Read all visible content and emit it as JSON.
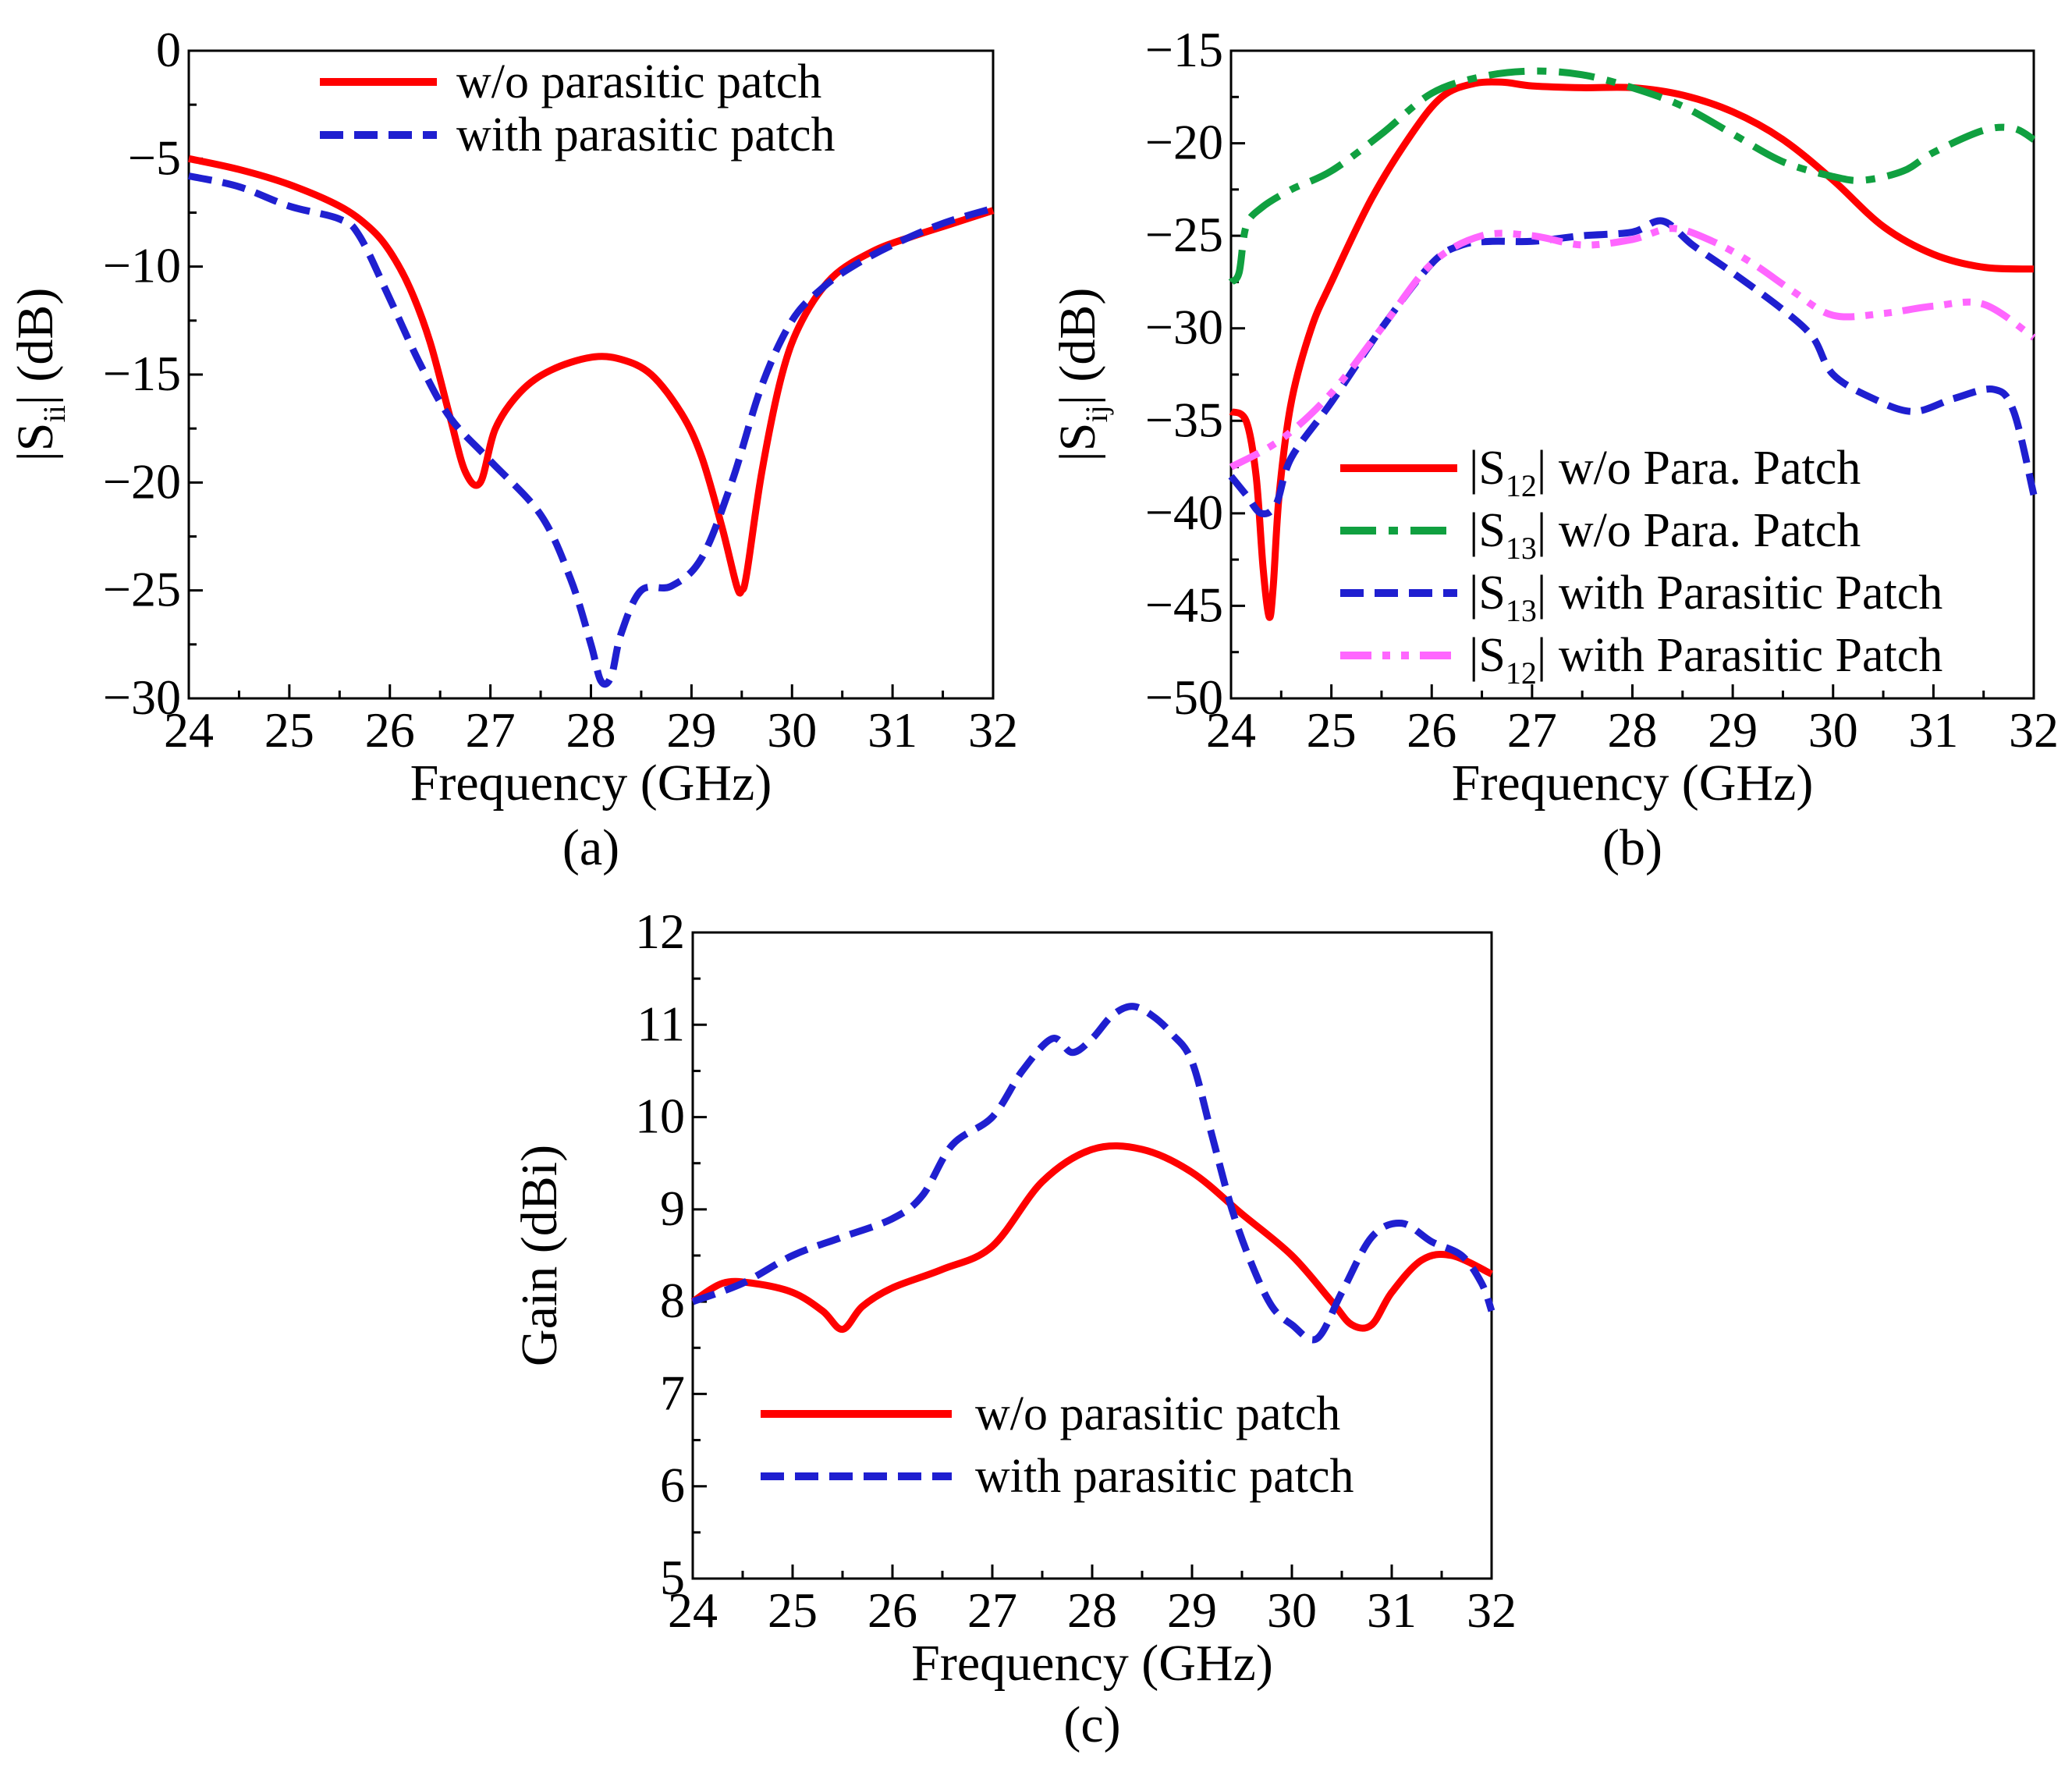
{
  "chart_data": [
    {
      "type": "line",
      "caption": "(a)",
      "xlabel": "Frequency (GHz)",
      "ylabel": {
        "pre": "|S",
        "sub": "ii",
        "post": "| (dB)"
      },
      "xlim": [
        24,
        32
      ],
      "ylim": [
        -30,
        0
      ],
      "xticks": [
        24,
        25,
        26,
        27,
        28,
        29,
        30,
        31,
        32
      ],
      "yticks": [
        0,
        -5,
        -10,
        -15,
        -20,
        -25,
        -30
      ],
      "series": [
        {
          "name": "w/o parasitic patch",
          "label": {
            "pre": "w/o parasitic patch",
            "sub": "",
            "post": ""
          },
          "color": "#ff0000",
          "style": "solid",
          "x": [
            24,
            24.5,
            25,
            25.5,
            25.8,
            26,
            26.2,
            26.4,
            26.6,
            26.75,
            26.9,
            27.05,
            27.3,
            27.6,
            28,
            28.3,
            28.6,
            28.9,
            29.1,
            29.3,
            29.45,
            29.5,
            29.55,
            29.7,
            29.9,
            30.1,
            30.4,
            30.8,
            31.2,
            31.6,
            32
          ],
          "y": [
            -5.0,
            -5.5,
            -6.2,
            -7.2,
            -8.2,
            -9.3,
            -11.0,
            -13.5,
            -17.0,
            -19.5,
            -20.0,
            -17.5,
            -15.8,
            -14.8,
            -14.2,
            -14.3,
            -15.0,
            -16.8,
            -18.8,
            -22.0,
            -24.8,
            -25.0,
            -24.2,
            -19.5,
            -15.0,
            -12.5,
            -10.5,
            -9.3,
            -8.6,
            -8.0,
            -7.4
          ]
        },
        {
          "name": "with parasitic patch",
          "label": {
            "pre": "with parasitic patch",
            "sub": "",
            "post": ""
          },
          "color": "#1f1fd0",
          "style": "dash",
          "x": [
            24,
            24.5,
            25,
            25.5,
            25.7,
            26,
            26.3,
            26.6,
            27,
            27.5,
            27.8,
            28,
            28.1,
            28.2,
            28.3,
            28.5,
            28.8,
            29.1,
            29.4,
            29.7,
            30,
            30.3,
            30.6,
            31,
            31.5,
            32
          ],
          "y": [
            -5.8,
            -6.3,
            -7.2,
            -7.8,
            -8.6,
            -11.5,
            -14.5,
            -17.0,
            -19.0,
            -21.5,
            -24.5,
            -27.5,
            -29.2,
            -29.0,
            -27.0,
            -25.0,
            -24.8,
            -23.5,
            -20.0,
            -15.5,
            -12.5,
            -11.0,
            -10.0,
            -9.0,
            -8.0,
            -7.3
          ]
        }
      ]
    },
    {
      "type": "line",
      "caption": "(b)",
      "xlabel": "Frequency (GHz)",
      "ylabel": {
        "pre": "|S",
        "sub": "ij",
        "post": "| (dB)"
      },
      "xlim": [
        24,
        32
      ],
      "ylim": [
        -50,
        -15
      ],
      "xticks": [
        24,
        25,
        26,
        27,
        28,
        29,
        30,
        31,
        32
      ],
      "yticks": [
        -15,
        -20,
        -25,
        -30,
        -35,
        -40,
        -45,
        -50
      ],
      "series": [
        {
          "name": "|S12| w/o Para. Patch",
          "label": {
            "pre": "|S",
            "sub": "12",
            "post": "| w/o Para. Patch"
          },
          "color": "#ff0000",
          "style": "solid",
          "x": [
            24,
            24.15,
            24.25,
            24.32,
            24.38,
            24.42,
            24.48,
            24.6,
            24.8,
            25,
            25.4,
            25.8,
            26.1,
            26.4,
            26.7,
            27,
            27.5,
            28,
            28.5,
            29,
            29.5,
            30,
            30.5,
            31,
            31.5,
            32
          ],
          "y": [
            -34.5,
            -35.0,
            -38.0,
            -43.0,
            -45.6,
            -44.0,
            -39.0,
            -34.0,
            -30.0,
            -27.5,
            -23.0,
            -19.5,
            -17.5,
            -16.8,
            -16.7,
            -16.9,
            -17.0,
            -17.0,
            -17.4,
            -18.3,
            -19.8,
            -22.0,
            -24.5,
            -26.0,
            -26.7,
            -26.8
          ]
        },
        {
          "name": "|S13| w/o Para. Patch",
          "label": {
            "pre": "|S",
            "sub": "13",
            "post": "| w/o Para. Patch"
          },
          "color": "#10a040",
          "style": "dashdot",
          "x": [
            24,
            24.08,
            24.15,
            24.3,
            24.6,
            25,
            25.5,
            26,
            26.5,
            27,
            27.5,
            28,
            28.5,
            29,
            29.5,
            30,
            30.3,
            30.7,
            31,
            31.5,
            31.8,
            32
          ],
          "y": [
            -27.5,
            -27.0,
            -24.5,
            -23.5,
            -22.5,
            -21.5,
            -19.5,
            -17.3,
            -16.4,
            -16.1,
            -16.3,
            -17.0,
            -18.0,
            -19.5,
            -21.0,
            -21.8,
            -22.0,
            -21.5,
            -20.5,
            -19.3,
            -19.2,
            -19.8
          ]
        },
        {
          "name": "|S13| with Parasitic Patch",
          "label": {
            "pre": "|S",
            "sub": "13",
            "post": "| with Parasitic Patch"
          },
          "color": "#1f1fd0",
          "style": "dash",
          "x": [
            24,
            24.15,
            24.3,
            24.45,
            24.6,
            25,
            25.5,
            26,
            26.3,
            26.6,
            27,
            27.5,
            28,
            28.3,
            28.6,
            29,
            29.5,
            29.8,
            30,
            30.4,
            30.8,
            31.2,
            31.6,
            31.8,
            32
          ],
          "y": [
            -38.0,
            -39.0,
            -40.0,
            -39.5,
            -37.0,
            -34.0,
            -30.0,
            -26.5,
            -25.5,
            -25.3,
            -25.3,
            -25.0,
            -24.8,
            -24.2,
            -25.5,
            -27.0,
            -29.0,
            -30.5,
            -32.5,
            -33.8,
            -34.5,
            -33.8,
            -33.3,
            -34.5,
            -39.0
          ]
        },
        {
          "name": "|S12| with Parasitic Patch",
          "label": {
            "pre": "|S",
            "sub": "12",
            "post": "| with Parasitic Patch"
          },
          "color": "#ff66ff",
          "style": "dashdotdot",
          "x": [
            24,
            24.5,
            25,
            25.5,
            26,
            26.5,
            27,
            27.5,
            28,
            28.4,
            28.8,
            29.2,
            29.6,
            30,
            30.5,
            31,
            31.5,
            32
          ],
          "y": [
            -37.5,
            -36.0,
            -33.5,
            -30.0,
            -26.5,
            -25.0,
            -25.0,
            -25.5,
            -25.2,
            -24.6,
            -25.3,
            -26.5,
            -28.0,
            -29.3,
            -29.2,
            -28.8,
            -28.7,
            -30.5
          ]
        }
      ]
    },
    {
      "type": "line",
      "caption": "(c)",
      "xlabel": "Frequency (GHz)",
      "ylabel": {
        "pre": "Gain (dBi)",
        "sub": "",
        "post": ""
      },
      "xlim": [
        24,
        32
      ],
      "ylim": [
        5,
        12
      ],
      "xticks": [
        24,
        25,
        26,
        27,
        28,
        29,
        30,
        31,
        32
      ],
      "yticks": [
        5,
        6,
        7,
        8,
        9,
        10,
        11,
        12
      ],
      "series": [
        {
          "name": "w/o parasitic patch",
          "label": {
            "pre": "w/o parasitic patch",
            "sub": "",
            "post": ""
          },
          "color": "#ff0000",
          "style": "solid",
          "x": [
            24,
            24.3,
            24.6,
            25,
            25.3,
            25.5,
            25.7,
            26,
            26.5,
            27,
            27.5,
            28,
            28.5,
            29,
            29.5,
            30,
            30.4,
            30.6,
            30.8,
            31,
            31.3,
            31.6,
            32
          ],
          "y": [
            8.0,
            8.2,
            8.2,
            8.1,
            7.9,
            7.7,
            7.95,
            8.15,
            8.35,
            8.6,
            9.3,
            9.65,
            9.65,
            9.4,
            8.95,
            8.5,
            8.0,
            7.75,
            7.75,
            8.1,
            8.45,
            8.5,
            8.3
          ]
        },
        {
          "name": "with parasitic patch",
          "label": {
            "pre": "with parasitic patch",
            "sub": "",
            "post": ""
          },
          "color": "#1f1fd0",
          "style": "dash",
          "x": [
            24,
            24.5,
            25,
            25.5,
            26,
            26.3,
            26.6,
            27,
            27.3,
            27.6,
            27.8,
            28,
            28.2,
            28.4,
            28.6,
            28.8,
            29,
            29.2,
            29.4,
            29.6,
            29.8,
            30,
            30.25,
            30.5,
            30.8,
            31.1,
            31.4,
            31.7,
            31.9,
            32
          ],
          "y": [
            8.0,
            8.2,
            8.5,
            8.7,
            8.9,
            9.15,
            9.7,
            10.0,
            10.5,
            10.85,
            10.7,
            10.85,
            11.1,
            11.2,
            11.1,
            10.9,
            10.6,
            9.8,
            9.0,
            8.4,
            7.95,
            7.75,
            7.6,
            8.1,
            8.7,
            8.85,
            8.65,
            8.5,
            8.2,
            7.9
          ]
        }
      ]
    }
  ]
}
